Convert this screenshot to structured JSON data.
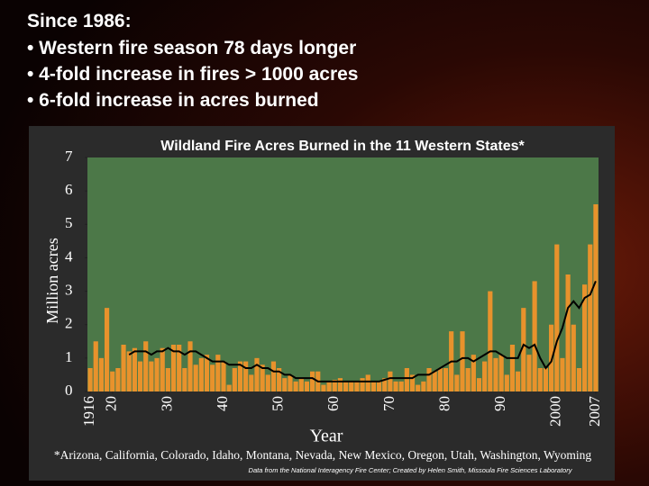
{
  "slide": {
    "lines": [
      "Since 1986:",
      "• Western fire season 78 days longer",
      "• 4-fold increase in fires > 1000 acres",
      "• 6-fold increase in acres burned"
    ]
  },
  "chart_data": {
    "type": "bar",
    "title": "Wildland Fire Acres Burned in the 11 Western States*",
    "y_label": "Million acres",
    "x_label": "Year",
    "footnote": "*Arizona, California, Colorado, Idaho, Montana, Nevada, New Mexico, Oregon, Utah, Washington, Wyoming",
    "credit": "Data from the National Interagency Fire Center; Created by Helen Smith, Missoula Fire Sciences Laboratory",
    "x": [
      1916,
      1917,
      1918,
      1919,
      1920,
      1921,
      1922,
      1923,
      1924,
      1925,
      1926,
      1927,
      1928,
      1929,
      1930,
      1931,
      1932,
      1933,
      1934,
      1935,
      1936,
      1937,
      1938,
      1939,
      1940,
      1941,
      1942,
      1943,
      1944,
      1945,
      1946,
      1947,
      1948,
      1949,
      1950,
      1951,
      1952,
      1953,
      1954,
      1955,
      1956,
      1957,
      1958,
      1959,
      1960,
      1961,
      1962,
      1963,
      1964,
      1965,
      1966,
      1967,
      1968,
      1969,
      1970,
      1971,
      1972,
      1973,
      1974,
      1975,
      1976,
      1977,
      1978,
      1979,
      1980,
      1981,
      1982,
      1983,
      1984,
      1985,
      1986,
      1987,
      1988,
      1989,
      1990,
      1991,
      1992,
      1993,
      1994,
      1995,
      1996,
      1997,
      1998,
      1999,
      2000,
      2001,
      2002,
      2003,
      2004,
      2005,
      2006,
      2007
    ],
    "series": [
      {
        "type": "bar",
        "color": "#e8922c",
        "values": [
          0.7,
          1.5,
          1.0,
          2.5,
          0.6,
          0.7,
          1.4,
          1.2,
          1.3,
          0.9,
          1.5,
          0.9,
          1.0,
          1.3,
          0.7,
          1.4,
          1.4,
          0.7,
          1.5,
          0.8,
          1.0,
          1.1,
          0.8,
          1.1,
          0.9,
          0.2,
          0.7,
          0.9,
          0.9,
          0.5,
          1.0,
          0.8,
          0.5,
          0.9,
          0.7,
          0.4,
          0.5,
          0.3,
          0.4,
          0.3,
          0.6,
          0.6,
          0.2,
          0.3,
          0.35,
          0.4,
          0.3,
          0.3,
          0.3,
          0.4,
          0.5,
          0.3,
          0.3,
          0.4,
          0.6,
          0.3,
          0.3,
          0.7,
          0.5,
          0.2,
          0.3,
          0.7,
          0.6,
          0.7,
          0.7,
          1.8,
          0.5,
          1.8,
          0.7,
          1.1,
          0.4,
          0.9,
          3.0,
          1.0,
          1.1,
          0.5,
          1.4,
          0.6,
          2.5,
          1.1,
          3.3,
          0.7,
          0.7,
          2.0,
          4.4,
          1.0,
          3.5,
          2.0,
          0.7,
          3.2,
          4.4,
          5.6
        ]
      },
      {
        "type": "line",
        "color": "#000000",
        "values": [
          null,
          null,
          null,
          null,
          null,
          null,
          null,
          1.1,
          1.2,
          1.2,
          1.2,
          1.1,
          1.2,
          1.2,
          1.3,
          1.2,
          1.2,
          1.1,
          1.2,
          1.2,
          1.1,
          1.0,
          0.9,
          0.9,
          0.9,
          0.8,
          0.8,
          0.8,
          0.7,
          0.7,
          0.8,
          0.7,
          0.7,
          0.6,
          0.6,
          0.5,
          0.5,
          0.4,
          0.4,
          0.4,
          0.4,
          0.3,
          0.3,
          0.3,
          0.3,
          0.3,
          0.3,
          0.3,
          0.3,
          0.3,
          0.3,
          0.3,
          0.3,
          0.35,
          0.4,
          0.4,
          0.4,
          0.4,
          0.4,
          0.5,
          0.5,
          0.5,
          0.6,
          0.7,
          0.8,
          0.9,
          0.9,
          1.0,
          1.0,
          0.9,
          1.0,
          1.1,
          1.2,
          1.2,
          1.1,
          1.0,
          1.0,
          1.0,
          1.4,
          1.3,
          1.4,
          1.0,
          0.7,
          0.9,
          1.5,
          1.9,
          2.5,
          2.7,
          2.5,
          2.8,
          2.9,
          3.3
        ]
      }
    ],
    "xlim": [
      1915.5,
      2007.5
    ],
    "xticks": [
      {
        "value": 1916,
        "label": "1916"
      },
      {
        "value": 1920,
        "label": "20"
      },
      {
        "value": 1930,
        "label": "30"
      },
      {
        "value": 1940,
        "label": "40"
      },
      {
        "value": 1950,
        "label": "50"
      },
      {
        "value": 1960,
        "label": "60"
      },
      {
        "value": 1970,
        "label": "70"
      },
      {
        "value": 1980,
        "label": "80"
      },
      {
        "value": 1990,
        "label": "90"
      },
      2000,
      2007
    ],
    "ylim": [
      0,
      7
    ],
    "yticks": [
      0,
      1,
      2,
      3,
      4,
      5,
      6,
      7
    ],
    "plot_color": "#4c7848"
  }
}
